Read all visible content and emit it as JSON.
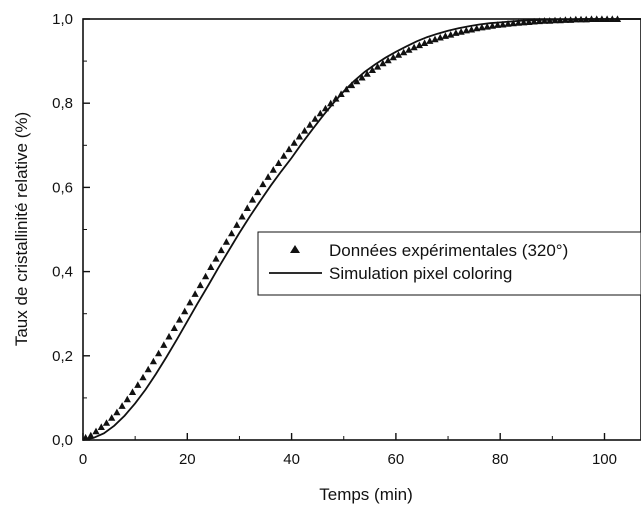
{
  "chart_data": {
    "type": "line",
    "title": "",
    "xlabel": "Temps (min)",
    "ylabel": "Taux de cristallinité relative (%)",
    "xlim": [
      0,
      107
    ],
    "ylim": [
      0,
      1.0
    ],
    "x_ticks": [
      0,
      20,
      40,
      60,
      80,
      100
    ],
    "x_tick_labels": [
      "0",
      "20",
      "40",
      "60",
      "80",
      "100"
    ],
    "y_ticks": [
      0.0,
      0.2,
      0.4,
      0.6,
      0.8,
      1.0
    ],
    "y_tick_labels": [
      "0,0",
      "0,2",
      "0,4",
      "0,6",
      "0,8",
      "1,0"
    ],
    "grid": false,
    "legend_position": "center-right",
    "series": [
      {
        "name": "Données expérimentales (320°)",
        "style": "markers",
        "marker": "triangle",
        "color": "#111111",
        "x": [
          0.5,
          1.5,
          2.5,
          3.5,
          4.5,
          5.5,
          6.5,
          7.5,
          8.5,
          9.5,
          10.5,
          11.5,
          12.5,
          13.5,
          14.5,
          15.5,
          16.5,
          17.5,
          18.5,
          19.5,
          20.5,
          21.5,
          22.5,
          23.5,
          24.5,
          25.5,
          26.5,
          27.5,
          28.5,
          29.5,
          30.5,
          31.5,
          32.5,
          33.5,
          34.5,
          35.5,
          36.5,
          37.5,
          38.5,
          39.5,
          40.5,
          41.5,
          42.5,
          43.5,
          44.5,
          45.5,
          46.5,
          47.5,
          48.5,
          49.5,
          50.5,
          51.5,
          52.5,
          53.5,
          54.5,
          55.5,
          56.5,
          57.5,
          58.5,
          59.5,
          60.5,
          61.5,
          62.5,
          63.5,
          64.5,
          65.5,
          66.5,
          67.5,
          68.5,
          69.5,
          70.5,
          71.5,
          72.5,
          73.5,
          74.5,
          75.5,
          76.5,
          77.5,
          78.5,
          79.5,
          80.5,
          81.5,
          82.5,
          83.5,
          84.5,
          85.5,
          86.5,
          87.5,
          88.5,
          89.5,
          90.5,
          91.5,
          92.5,
          93.5,
          94.5,
          95.5,
          96.5,
          97.5,
          98.5,
          99.5,
          100.5,
          101.5,
          102.5
        ],
        "y": [
          0.005,
          0.01,
          0.02,
          0.03,
          0.04,
          0.052,
          0.065,
          0.08,
          0.096,
          0.113,
          0.13,
          0.148,
          0.167,
          0.186,
          0.205,
          0.225,
          0.245,
          0.265,
          0.285,
          0.305,
          0.326,
          0.346,
          0.367,
          0.388,
          0.41,
          0.43,
          0.45,
          0.47,
          0.49,
          0.51,
          0.53,
          0.55,
          0.57,
          0.588,
          0.607,
          0.624,
          0.641,
          0.657,
          0.674,
          0.69,
          0.705,
          0.72,
          0.734,
          0.748,
          0.762,
          0.775,
          0.787,
          0.799,
          0.81,
          0.821,
          0.832,
          0.842,
          0.851,
          0.86,
          0.869,
          0.878,
          0.886,
          0.894,
          0.901,
          0.908,
          0.914,
          0.92,
          0.926,
          0.932,
          0.937,
          0.942,
          0.947,
          0.951,
          0.955,
          0.959,
          0.962,
          0.966,
          0.969,
          0.972,
          0.974,
          0.977,
          0.979,
          0.981,
          0.983,
          0.985,
          0.986,
          0.988,
          0.989,
          0.99,
          0.991,
          0.992,
          0.993,
          0.994,
          0.995,
          0.995,
          0.996,
          0.996,
          0.997,
          0.997,
          0.998,
          0.998,
          0.998,
          0.999,
          0.999,
          0.999,
          0.999,
          0.999,
          0.999
        ]
      },
      {
        "name": "Simulation pixel coloring",
        "style": "line",
        "color": "#111111",
        "x": [
          0,
          2,
          4,
          6,
          8,
          10,
          12,
          14,
          16,
          18,
          20,
          22,
          24,
          26,
          28,
          30,
          32,
          34,
          36,
          38,
          40,
          42,
          44,
          46,
          48,
          50,
          52,
          54,
          56,
          58,
          60,
          62,
          64,
          66,
          68,
          70,
          72,
          74,
          76,
          78,
          80,
          82,
          84,
          86,
          88,
          90,
          92,
          94,
          96,
          98,
          100,
          102,
          104,
          107
        ],
        "y": [
          0.0,
          0.005,
          0.016,
          0.034,
          0.058,
          0.087,
          0.12,
          0.157,
          0.197,
          0.239,
          0.282,
          0.325,
          0.367,
          0.41,
          0.451,
          0.492,
          0.531,
          0.568,
          0.604,
          0.638,
          0.67,
          0.705,
          0.738,
          0.77,
          0.8,
          0.828,
          0.853,
          0.874,
          0.892,
          0.908,
          0.922,
          0.935,
          0.947,
          0.957,
          0.965,
          0.972,
          0.978,
          0.983,
          0.987,
          0.99,
          0.992,
          0.994,
          0.996,
          0.997,
          0.998,
          0.998,
          0.999,
          0.999,
          1.0,
          1.0,
          1.0,
          1.0,
          1.0,
          1.0
        ]
      }
    ]
  }
}
